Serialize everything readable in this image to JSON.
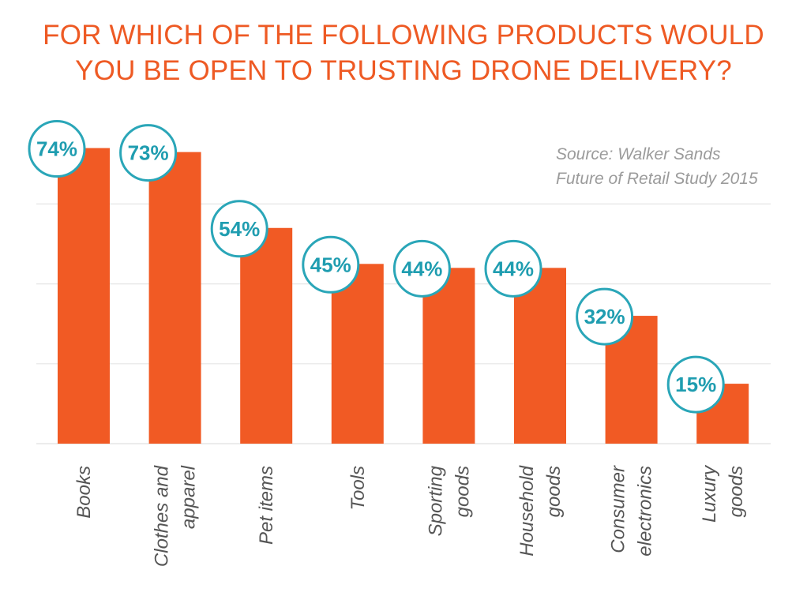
{
  "title_lines": [
    "FOR WHICH OF THE FOLLOWING PRODUCTS WOULD",
    "YOU BE OPEN TO TRUSTING DRONE DELIVERY?"
  ],
  "source_lines": [
    "Source: Walker Sands",
    "Future of Retail Study 2015"
  ],
  "colors": {
    "bar": "#f15a24",
    "title": "#ee5a24",
    "bubble_stroke": "#2aa6b8",
    "bubble_text": "#1f9db0",
    "grid": "#e6e6e6",
    "label": "#555555",
    "source": "#9b9b9b"
  },
  "chart_data": {
    "type": "bar",
    "title": "FOR WHICH OF THE FOLLOWING PRODUCTS WOULD YOU BE OPEN TO TRUSTING DRONE DELIVERY?",
    "categories": [
      [
        "Books"
      ],
      [
        "Clothes and",
        "apparel"
      ],
      [
        "Pet items"
      ],
      [
        "Tools"
      ],
      [
        "Sporting",
        "goods"
      ],
      [
        "Household",
        "goods"
      ],
      [
        "Consumer",
        "electronics"
      ],
      [
        "Luxury",
        "goods"
      ]
    ],
    "values": [
      74,
      73,
      54,
      45,
      44,
      44,
      32,
      15
    ],
    "data_labels": [
      "74%",
      "73%",
      "54%",
      "45%",
      "44%",
      "44%",
      "32%",
      "15%"
    ],
    "ylim": [
      0,
      80
    ],
    "grid": true,
    "gridlines": [
      20,
      40,
      60
    ],
    "legend": "none"
  }
}
